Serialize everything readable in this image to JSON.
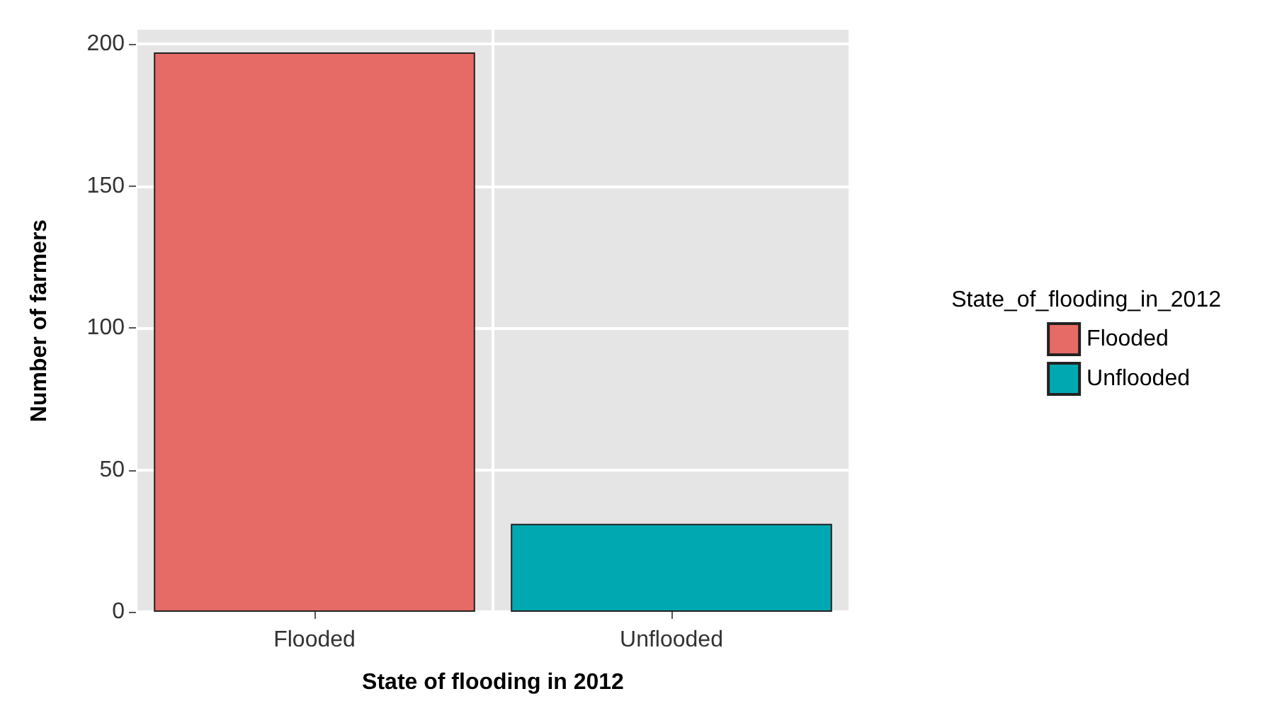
{
  "chart_data": {
    "type": "bar",
    "xlabel": "State of flooding in 2012",
    "ylabel": "Number of farmers",
    "categories": [
      "Flooded",
      "Unflooded"
    ],
    "series": [
      {
        "name": "Flooded",
        "color": "#e66a66",
        "values": [
          197,
          null
        ]
      },
      {
        "name": "Unflooded",
        "color": "#00a9b2",
        "values": [
          null,
          31
        ]
      }
    ],
    "ylim": [
      0,
      205
    ],
    "yticks": [
      0,
      50,
      100,
      150,
      200
    ],
    "grid": true,
    "legend": "right",
    "legend_title": "State_of_flooding_in_2012"
  }
}
